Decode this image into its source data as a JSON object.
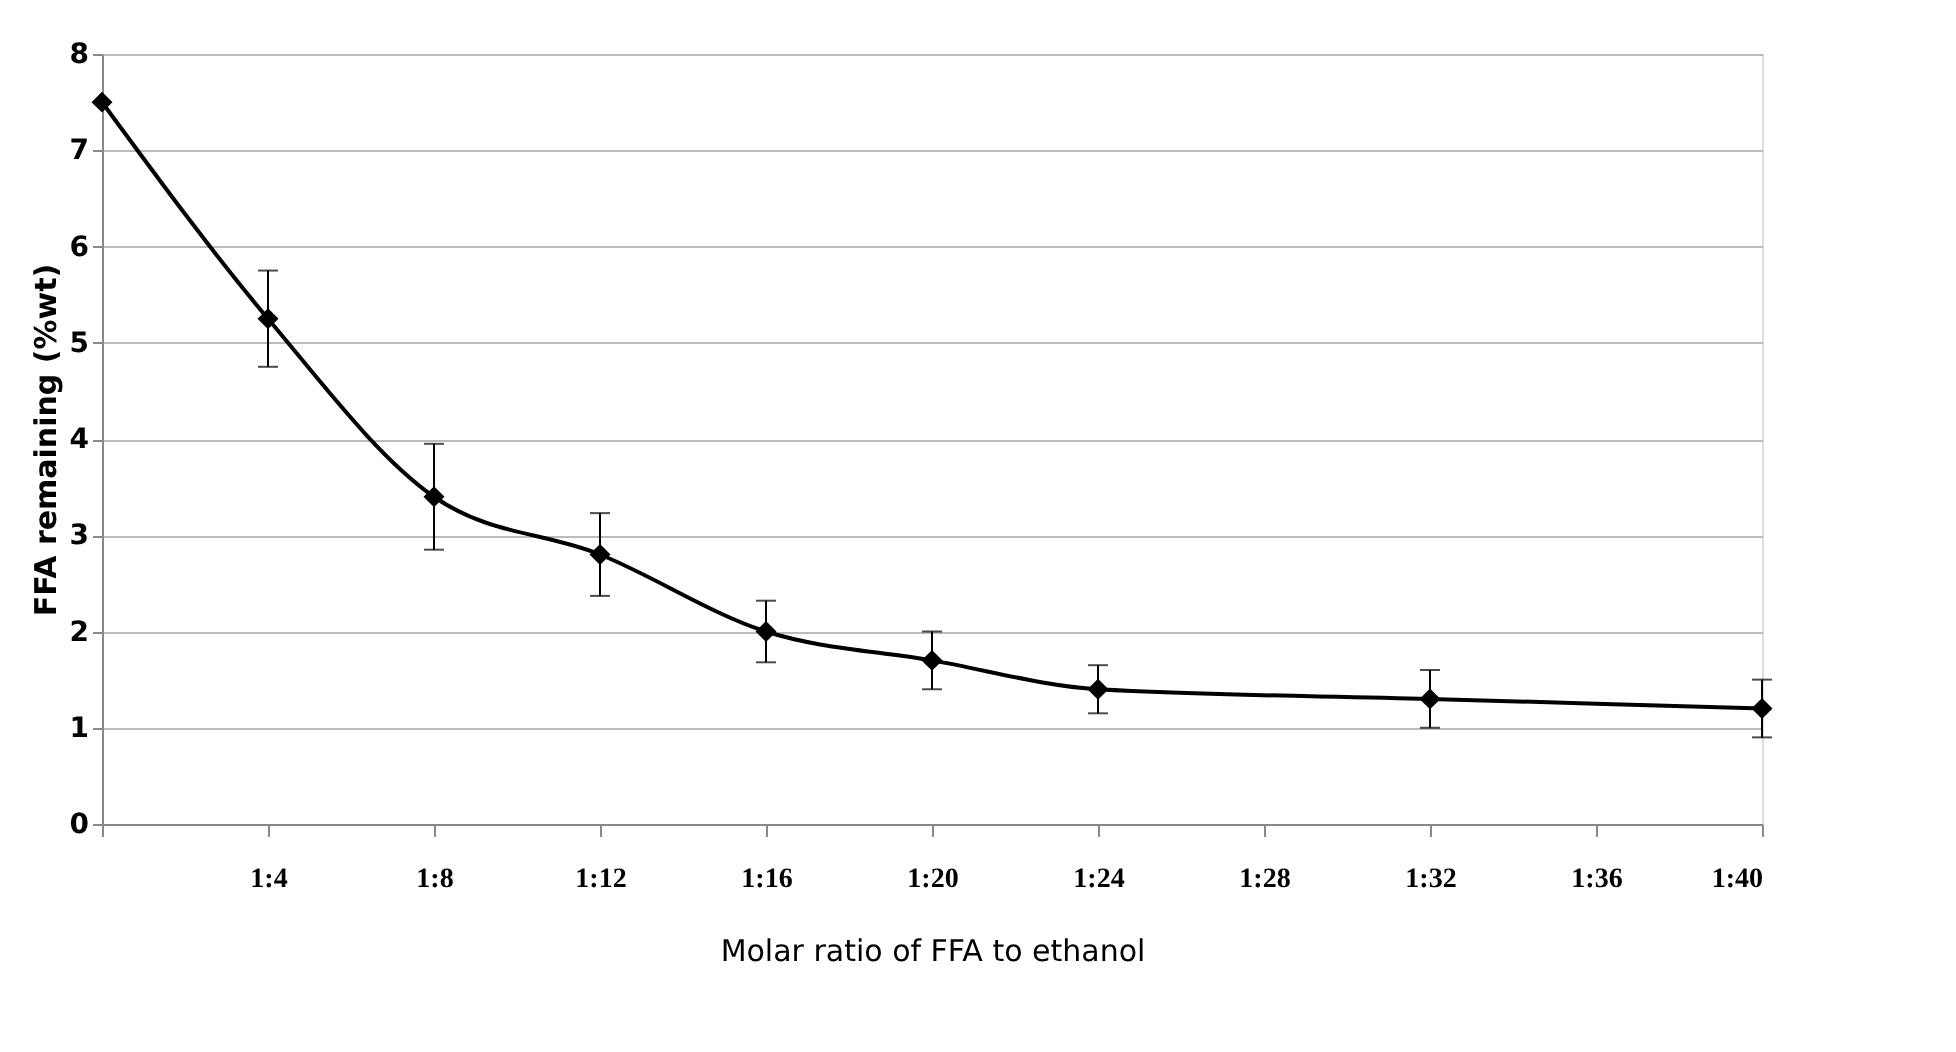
{
  "chart_data": {
    "type": "line",
    "xlabel": "Molar ratio of FFA to ethanol",
    "ylabel": "FFA remaining (%wt)",
    "categories": [
      null,
      "1:4",
      "1:8",
      "1:12",
      "1:16",
      "1:20",
      "1:24",
      "1:28",
      "1:32",
      "1:36",
      "1:40"
    ],
    "series": [
      {
        "color": "#000000",
        "values": [
          7.5,
          5.25,
          3.4,
          2.8,
          2.0,
          1.7,
          1.4,
          null,
          1.3,
          null,
          1.2
        ],
        "errors": [
          null,
          0.5,
          0.55,
          0.43,
          0.32,
          0.3,
          0.25,
          null,
          0.3,
          null,
          0.3
        ]
      }
    ],
    "ylim": [
      0,
      8
    ],
    "yticks": [
      0,
      1,
      2,
      3,
      4,
      5,
      6,
      7,
      8
    ],
    "grid": "y",
    "marker": "diamond",
    "line_style": "solid"
  }
}
